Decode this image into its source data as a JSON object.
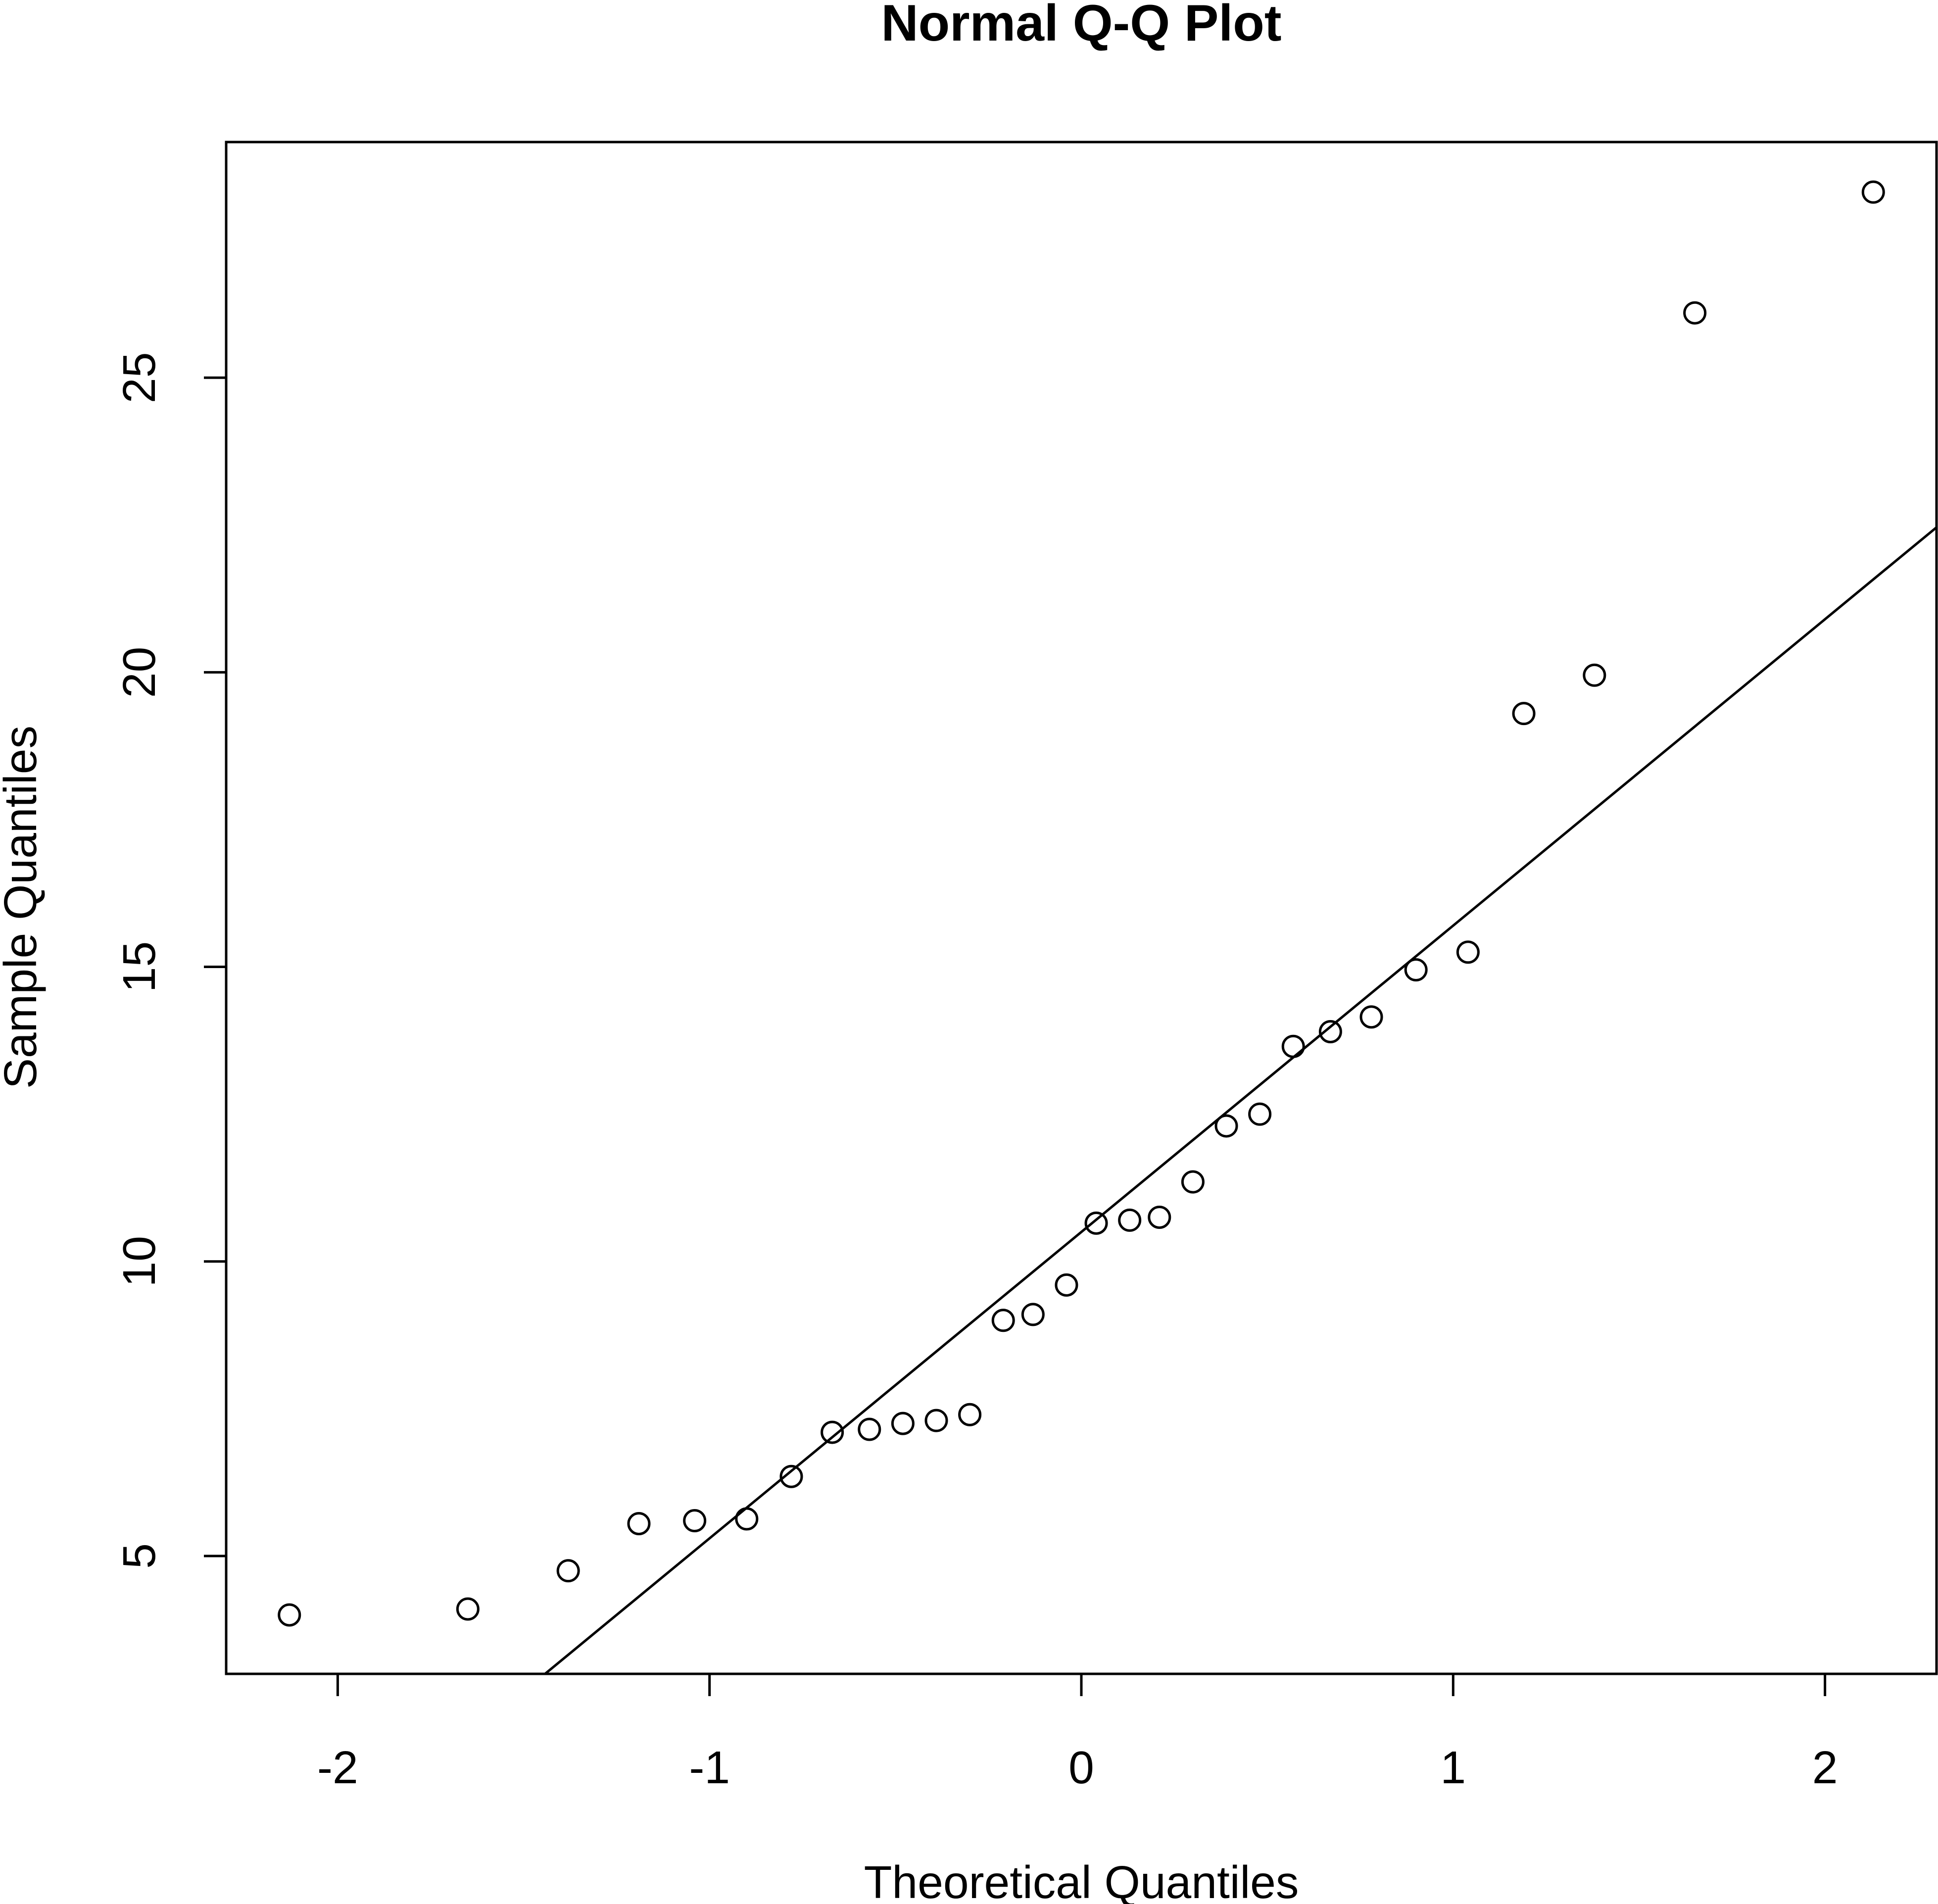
{
  "chart_data": {
    "type": "scatter",
    "title": "Normal Q-Q Plot",
    "xlabel": "Theoretical Quantiles",
    "ylabel": "Sample Quantiles",
    "xlim": [
      -2.3,
      2.3
    ],
    "ylim": [
      3.0,
      29.0
    ],
    "x_ticks": [
      {
        "value": -2,
        "label": "-2"
      },
      {
        "value": -1,
        "label": "-1"
      },
      {
        "value": 0,
        "label": "0"
      },
      {
        "value": 1,
        "label": "1"
      },
      {
        "value": 2,
        "label": "2"
      }
    ],
    "y_ticks": [
      {
        "value": 5,
        "label": "5"
      },
      {
        "value": 10,
        "label": "10"
      },
      {
        "value": 15,
        "label": "15"
      },
      {
        "value": 20,
        "label": "20"
      },
      {
        "value": 25,
        "label": "25"
      }
    ],
    "grid": false,
    "legend": "none",
    "reference_line": {
      "slope": 5.2,
      "intercept": 10.5
    },
    "series": [
      {
        "points": [
          {
            "x": -2.13,
            "y": 4.0
          },
          {
            "x": -1.65,
            "y": 4.1
          },
          {
            "x": -1.38,
            "y": 4.75
          },
          {
            "x": -1.19,
            "y": 5.55
          },
          {
            "x": -1.04,
            "y": 5.6
          },
          {
            "x": -0.9,
            "y": 5.63
          },
          {
            "x": -0.78,
            "y": 6.35
          },
          {
            "x": -0.67,
            "y": 7.1
          },
          {
            "x": -0.57,
            "y": 7.15
          },
          {
            "x": -0.48,
            "y": 7.25
          },
          {
            "x": -0.39,
            "y": 7.3
          },
          {
            "x": -0.3,
            "y": 7.4
          },
          {
            "x": -0.21,
            "y": 9.0
          },
          {
            "x": -0.13,
            "y": 9.1
          },
          {
            "x": -0.04,
            "y": 9.6
          },
          {
            "x": 0.04,
            "y": 10.65
          },
          {
            "x": 0.13,
            "y": 10.7
          },
          {
            "x": 0.21,
            "y": 10.75
          },
          {
            "x": 0.3,
            "y": 11.35
          },
          {
            "x": 0.39,
            "y": 12.3
          },
          {
            "x": 0.48,
            "y": 12.5
          },
          {
            "x": 0.57,
            "y": 13.65
          },
          {
            "x": 0.67,
            "y": 13.9
          },
          {
            "x": 0.78,
            "y": 14.15
          },
          {
            "x": 0.9,
            "y": 14.95
          },
          {
            "x": 1.04,
            "y": 15.25
          },
          {
            "x": 1.19,
            "y": 19.3
          },
          {
            "x": 1.38,
            "y": 19.95
          },
          {
            "x": 1.65,
            "y": 26.1
          },
          {
            "x": 2.13,
            "y": 28.15
          }
        ]
      }
    ],
    "colors": {
      "points": "#000000",
      "line": "#000000",
      "axes": "#000000"
    }
  }
}
